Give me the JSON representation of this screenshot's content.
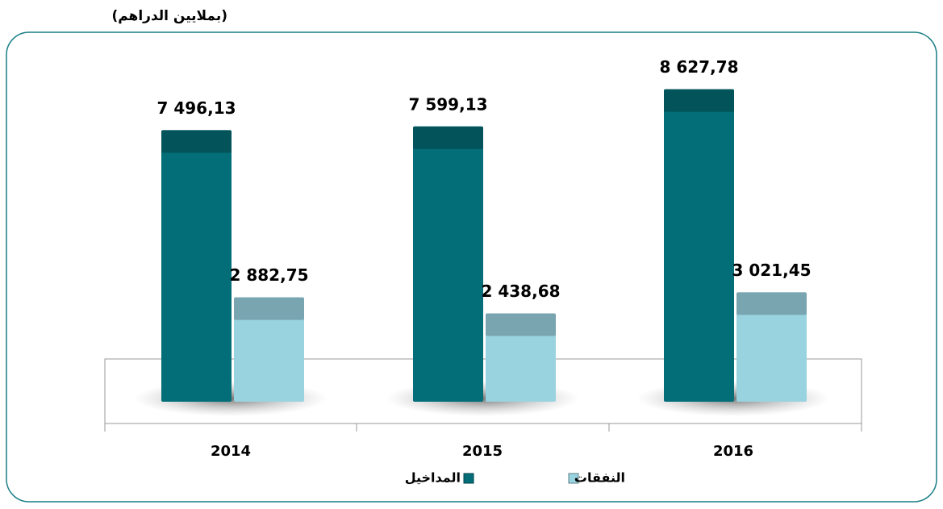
{
  "chart_data": {
    "type": "bar",
    "subtitle": "(بملايين الدراهم)",
    "categories": [
      "2014",
      "2015",
      "2016"
    ],
    "series": [
      {
        "name": "المداخيل",
        "color": "#036e78",
        "values": [
          7496.13,
          7599.13,
          8627.78
        ],
        "value_labels": [
          "7 496,13",
          "7 599,13",
          "8 627,78"
        ]
      },
      {
        "name": "النفقات",
        "color": "#9ad3e0",
        "values": [
          2882.75,
          2438.68,
          3021.45
        ],
        "value_labels": [
          "2 882,75",
          "2 438,68",
          "3 021,45"
        ]
      }
    ]
  }
}
